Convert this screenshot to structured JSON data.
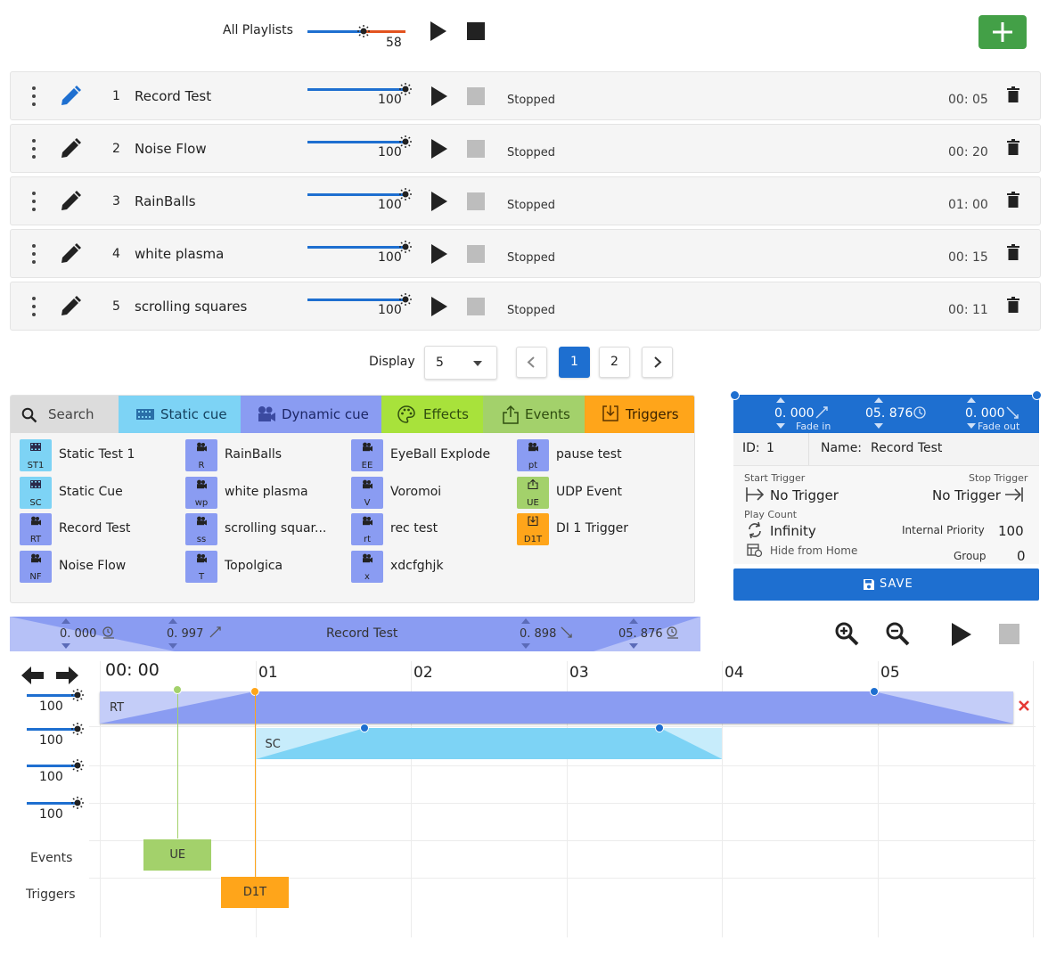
{
  "top_bar": {
    "label": "All Playlists",
    "master_volume": "58",
    "master_volume_percent": 58,
    "add_button_label": "+"
  },
  "playlist": {
    "rows": [
      {
        "index": "1",
        "name": "Record Test",
        "volume": "100",
        "status": "Stopped",
        "duration": "00: 05",
        "active": true
      },
      {
        "index": "2",
        "name": "Noise Flow",
        "volume": "100",
        "status": "Stopped",
        "duration": "00: 20",
        "active": false
      },
      {
        "index": "3",
        "name": "RainBalls",
        "volume": "100",
        "status": "Stopped",
        "duration": "01: 00",
        "active": false
      },
      {
        "index": "4",
        "name": "white plasma",
        "volume": "100",
        "status": "Stopped",
        "duration": "00: 15",
        "active": false
      },
      {
        "index": "5",
        "name": "scrolling squares",
        "volume": "100",
        "status": "Stopped",
        "duration": "00: 11",
        "active": false
      }
    ]
  },
  "pagination": {
    "display_label": "Display",
    "page_size": "5",
    "pages": [
      "1",
      "2"
    ],
    "current_page": "1",
    "prev_icon": "chevron-left-icon",
    "next_icon": "chevron-right-icon"
  },
  "library": {
    "tabs": [
      {
        "id": "search",
        "label": "Search",
        "color": "#dcdcdc",
        "icon": "search-icon"
      },
      {
        "id": "static",
        "label": "Static cue",
        "color": "#7dd3f5",
        "icon": "film-icon"
      },
      {
        "id": "dynamic",
        "label": "Dynamic cue",
        "color": "#8a9cf2",
        "icon": "camera-icon"
      },
      {
        "id": "effects",
        "label": "Effects",
        "color": "#a8e23b",
        "icon": "palette-icon"
      },
      {
        "id": "events",
        "label": "Events",
        "color": "#a3d16b",
        "icon": "share-icon"
      },
      {
        "id": "triggers",
        "label": "Triggers",
        "color": "#ffa51a",
        "icon": "download-icon"
      }
    ],
    "columns": [
      [
        {
          "abbr": "ST1",
          "name": "Static Test 1",
          "kind": "static"
        },
        {
          "abbr": "SC",
          "name": "Static Cue",
          "kind": "static"
        },
        {
          "abbr": "RT",
          "name": "Record Test",
          "kind": "dynamic"
        },
        {
          "abbr": "NF",
          "name": "Noise Flow",
          "kind": "dynamic"
        }
      ],
      [
        {
          "abbr": "R",
          "name": "RainBalls",
          "kind": "dynamic"
        },
        {
          "abbr": "wp",
          "name": "white plasma",
          "kind": "dynamic"
        },
        {
          "abbr": "ss",
          "name": "scrolling squar...",
          "kind": "dynamic"
        },
        {
          "abbr": "T",
          "name": "Topolgica",
          "kind": "dynamic"
        }
      ],
      [
        {
          "abbr": "EE",
          "name": "EyeBall Explode",
          "kind": "dynamic"
        },
        {
          "abbr": "V",
          "name": "Voromoi",
          "kind": "dynamic"
        },
        {
          "abbr": "rt",
          "name": "rec test",
          "kind": "dynamic"
        },
        {
          "abbr": "x",
          "name": "xdcfghjk",
          "kind": "dynamic"
        }
      ],
      [
        {
          "abbr": "pt",
          "name": "pause test",
          "kind": "dynamic"
        },
        {
          "abbr": "UE",
          "name": "UDP Event",
          "kind": "event"
        },
        {
          "abbr": "D1T",
          "name": "DI 1 Trigger",
          "kind": "trigger"
        }
      ]
    ],
    "kind_colors": {
      "static": "#7dd3f5",
      "dynamic": "#8a9cf2",
      "event": "#a3d16b",
      "trigger": "#ffa51a"
    }
  },
  "cue_editor": {
    "fade_in_value": "0. 000",
    "fade_in_label": "Fade in",
    "duration_value": "05. 876",
    "fade_out_value": "0. 000",
    "fade_out_label": "Fade out",
    "id_label": "ID:",
    "id_value": "1",
    "name_label": "Name:",
    "name_value": "Record Test",
    "start_trigger_label": "Start Trigger",
    "start_trigger_value": "No Trigger",
    "stop_trigger_label": "Stop Trigger",
    "stop_trigger_value": "No Trigger",
    "play_count_label": "Play Count",
    "play_count_value": "Infinity",
    "internal_priority_label": "Internal Priority",
    "internal_priority_value": "100",
    "hide_from_home_label": "Hide from Home",
    "group_label": "Group",
    "group_value": "0",
    "save_label": "SAVE"
  },
  "timeline_header": {
    "offset_value": "0. 000",
    "fade_in_value": "0. 997",
    "title": "Record Test",
    "fade_out_value": "0. 898",
    "duration_value": "05. 876"
  },
  "timeline": {
    "ticks": [
      "00: 00",
      "01",
      "02",
      "03",
      "04",
      "05"
    ],
    "track_volumes": [
      "100",
      "100",
      "100",
      "100"
    ],
    "row_labels": [
      "Events",
      "Triggers"
    ],
    "cues": [
      {
        "label": "RT",
        "start": 0.0,
        "end": 5.876,
        "fade_in": 0.997,
        "fade_out": 0.898,
        "track": 0,
        "color": "#8a9cf2",
        "fade_color": "#c4cdf8"
      },
      {
        "label": "SC",
        "start": 1.0,
        "end": 4.0,
        "fade_in": 0.7,
        "fade_out": 0.4,
        "track": 1,
        "color": "#7dd3f5",
        "fade_color": "#c7ecfb"
      }
    ],
    "events": [
      {
        "label": "UE",
        "time": 0.5,
        "color": "#a3d16b"
      }
    ],
    "triggers": [
      {
        "label": "D1T",
        "time": 1.0,
        "color": "#ffa51a"
      }
    ],
    "delete_icon": "close-icon"
  }
}
